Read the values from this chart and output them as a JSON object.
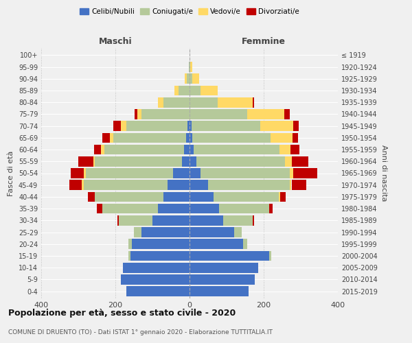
{
  "age_groups": [
    "0-4",
    "5-9",
    "10-14",
    "15-19",
    "20-24",
    "25-29",
    "30-34",
    "35-39",
    "40-44",
    "45-49",
    "50-54",
    "55-59",
    "60-64",
    "65-69",
    "70-74",
    "75-79",
    "80-84",
    "85-89",
    "90-94",
    "95-99",
    "100+"
  ],
  "birth_years": [
    "2015-2019",
    "2010-2014",
    "2005-2009",
    "2000-2004",
    "1995-1999",
    "1990-1994",
    "1985-1989",
    "1980-1984",
    "1975-1979",
    "1970-1974",
    "1965-1969",
    "1960-1964",
    "1955-1959",
    "1950-1954",
    "1945-1949",
    "1940-1944",
    "1935-1939",
    "1930-1934",
    "1925-1929",
    "1920-1924",
    "≤ 1919"
  ],
  "males": {
    "celibi": [
      170,
      185,
      180,
      160,
      155,
      130,
      100,
      85,
      70,
      60,
      45,
      20,
      15,
      10,
      5,
      0,
      0,
      0,
      0,
      0,
      0
    ],
    "coniugati": [
      0,
      0,
      0,
      5,
      10,
      20,
      90,
      150,
      185,
      225,
      235,
      235,
      215,
      195,
      165,
      130,
      70,
      30,
      8,
      2,
      0
    ],
    "vedovi": [
      0,
      0,
      0,
      0,
      0,
      0,
      0,
      0,
      0,
      5,
      5,
      5,
      8,
      10,
      15,
      10,
      15,
      10,
      5,
      0,
      0
    ],
    "divorziati": [
      0,
      0,
      0,
      0,
      0,
      0,
      5,
      15,
      20,
      35,
      35,
      40,
      20,
      20,
      20,
      8,
      0,
      0,
      0,
      0,
      0
    ]
  },
  "females": {
    "nubili": [
      160,
      175,
      185,
      215,
      145,
      120,
      90,
      80,
      65,
      50,
      30,
      18,
      12,
      8,
      5,
      0,
      0,
      0,
      0,
      0,
      0
    ],
    "coniugate": [
      0,
      0,
      0,
      5,
      10,
      20,
      80,
      135,
      175,
      220,
      240,
      240,
      230,
      210,
      185,
      155,
      75,
      30,
      8,
      2,
      0
    ],
    "vedove": [
      0,
      0,
      0,
      0,
      0,
      0,
      0,
      0,
      5,
      5,
      10,
      18,
      30,
      60,
      90,
      100,
      95,
      45,
      18,
      5,
      0
    ],
    "divorziate": [
      0,
      0,
      0,
      0,
      0,
      0,
      5,
      10,
      15,
      40,
      65,
      45,
      25,
      15,
      15,
      15,
      5,
      0,
      0,
      0,
      0
    ]
  },
  "colors": {
    "celibi": "#4472C4",
    "coniugati": "#B5C99A",
    "vedovi": "#FFD966",
    "divorziati": "#C00000"
  },
  "title": "Popolazione per età, sesso e stato civile - 2020",
  "subtitle": "COMUNE DI DRUENTO (TO) - Dati ISTAT 1° gennaio 2020 - Elaborazione TUTTITALIA.IT",
  "xlabel_left": "Maschi",
  "xlabel_right": "Femmine",
  "ylabel_left": "Fasce di età",
  "ylabel_right": "Anni di nascita",
  "xlim": 400,
  "legend_labels": [
    "Celibi/Nubili",
    "Coniugati/e",
    "Vedovi/e",
    "Divorziati/e"
  ],
  "background_color": "#f0f0f0"
}
